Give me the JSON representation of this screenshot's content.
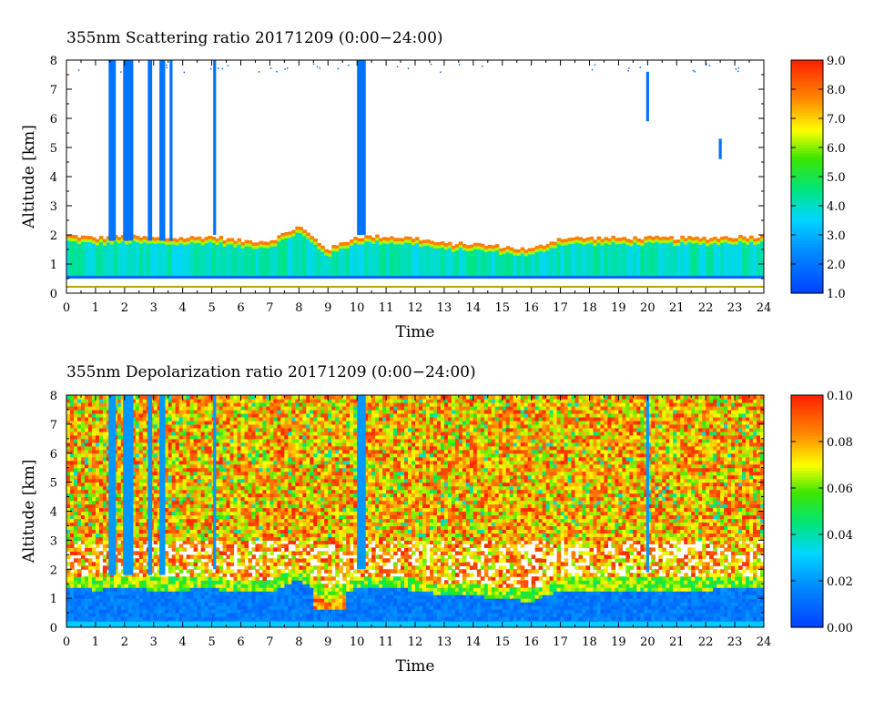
{
  "panels": [
    {
      "title": "355nm Scattering ratio  20171209 (0:00−24:00)"
    },
    {
      "title": "355nm Depolarization ratio  20171209 (0:00−24:00)"
    }
  ],
  "chart_data": [
    {
      "type": "heatmap",
      "title": "355nm Scattering ratio  20171209 (0:00−24:00)",
      "xlabel": "Time",
      "ylabel": "Altitude [km]",
      "xlim": [
        0,
        24
      ],
      "ylim": [
        0,
        8
      ],
      "x_ticks": [
        "0",
        "1",
        "2",
        "3",
        "4",
        "5",
        "6",
        "7",
        "8",
        "9",
        "10",
        "11",
        "12",
        "13",
        "14",
        "15",
        "16",
        "17",
        "18",
        "19",
        "20",
        "21",
        "22",
        "23",
        "24"
      ],
      "y_ticks": [
        "0",
        "1",
        "2",
        "3",
        "4",
        "5",
        "6",
        "7",
        "8"
      ],
      "colorbar": {
        "min": 1.0,
        "max": 9.0,
        "ticks": [
          "1.0",
          "2.0",
          "3.0",
          "4.0",
          "5.0",
          "6.0",
          "7.0",
          "8.0",
          "9.0"
        ]
      },
      "colors": [
        "#0050ff",
        "#00c8ff",
        "#00e060",
        "#ffff00",
        "#ff8000",
        "#ff2000"
      ],
      "boundary_layer_top_km": [
        [
          0,
          2.0
        ],
        [
          1,
          1.9
        ],
        [
          2,
          1.95
        ],
        [
          3,
          1.9
        ],
        [
          4,
          1.9
        ],
        [
          5,
          1.95
        ],
        [
          6,
          1.8
        ],
        [
          7,
          1.8
        ],
        [
          8,
          2.3
        ],
        [
          9,
          1.5
        ],
        [
          10,
          1.95
        ],
        [
          11,
          1.95
        ],
        [
          12,
          1.9
        ],
        [
          13,
          1.7
        ],
        [
          14,
          1.7
        ],
        [
          15,
          1.6
        ],
        [
          16,
          1.5
        ],
        [
          17,
          1.9
        ],
        [
          18,
          1.9
        ],
        [
          19,
          1.9
        ],
        [
          20,
          1.9
        ],
        [
          21,
          1.9
        ],
        [
          22,
          1.9
        ],
        [
          23,
          1.95
        ],
        [
          24,
          1.95
        ]
      ],
      "clouds": [
        {
          "t0": 1.45,
          "t1": 1.7,
          "z0": 1.8,
          "z1": 8
        },
        {
          "t0": 1.95,
          "t1": 2.3,
          "z0": 1.8,
          "z1": 8
        },
        {
          "t0": 2.8,
          "t1": 2.95,
          "z0": 1.8,
          "z1": 8
        },
        {
          "t0": 3.2,
          "t1": 3.4,
          "z0": 1.8,
          "z1": 8
        },
        {
          "t0": 3.55,
          "t1": 3.65,
          "z0": 1.8,
          "z1": 8
        },
        {
          "t0": 5.05,
          "t1": 5.15,
          "z0": 2.0,
          "z1": 8
        },
        {
          "t0": 10.0,
          "t1": 10.3,
          "z0": 2.0,
          "z1": 8
        },
        {
          "t0": 19.95,
          "t1": 20.05,
          "z0": 5.9,
          "z1": 7.6
        },
        {
          "t0": 22.45,
          "t1": 22.55,
          "z0": 4.6,
          "z1": 5.3
        }
      ]
    },
    {
      "type": "heatmap",
      "title": "355nm Depolarization ratio  20171209 (0:00−24:00)",
      "xlabel": "Time",
      "ylabel": "Altitude [km]",
      "xlim": [
        0,
        24
      ],
      "ylim": [
        0,
        8
      ],
      "x_ticks": [
        "0",
        "1",
        "2",
        "3",
        "4",
        "5",
        "6",
        "7",
        "8",
        "9",
        "10",
        "11",
        "12",
        "13",
        "14",
        "15",
        "16",
        "17",
        "18",
        "19",
        "20",
        "21",
        "22",
        "23",
        "24"
      ],
      "y_ticks": [
        "0",
        "1",
        "2",
        "3",
        "4",
        "5",
        "6",
        "7",
        "8"
      ],
      "colorbar": {
        "min": 0.0,
        "max": 0.1,
        "ticks": [
          "0.00",
          "0.02",
          "0.04",
          "0.06",
          "0.08",
          "0.10"
        ]
      },
      "colors": [
        "#0050ff",
        "#00c8ff",
        "#00e060",
        "#ffff00",
        "#ff8000",
        "#ff2000"
      ],
      "boundary_layer_top_km": [
        [
          0,
          2.0
        ],
        [
          1,
          1.9
        ],
        [
          2,
          1.95
        ],
        [
          3,
          1.9
        ],
        [
          4,
          1.9
        ],
        [
          5,
          1.95
        ],
        [
          6,
          1.8
        ],
        [
          7,
          1.8
        ],
        [
          8,
          2.3
        ],
        [
          9,
          1.5
        ],
        [
          10,
          1.95
        ],
        [
          11,
          1.95
        ],
        [
          12,
          1.9
        ],
        [
          13,
          1.7
        ],
        [
          14,
          1.7
        ],
        [
          15,
          1.6
        ],
        [
          16,
          1.5
        ],
        [
          17,
          1.9
        ],
        [
          18,
          1.9
        ],
        [
          19,
          1.9
        ],
        [
          20,
          1.9
        ],
        [
          21,
          1.9
        ],
        [
          22,
          1.9
        ],
        [
          23,
          1.95
        ],
        [
          24,
          1.95
        ]
      ],
      "clouds": [
        {
          "t0": 1.45,
          "t1": 1.7,
          "z0": 1.8,
          "z1": 8
        },
        {
          "t0": 1.95,
          "t1": 2.3,
          "z0": 1.8,
          "z1": 8
        },
        {
          "t0": 2.8,
          "t1": 2.95,
          "z0": 1.8,
          "z1": 8
        },
        {
          "t0": 3.2,
          "t1": 3.4,
          "z0": 1.8,
          "z1": 8
        },
        {
          "t0": 5.05,
          "t1": 5.15,
          "z0": 2.0,
          "z1": 8
        },
        {
          "t0": 10.0,
          "t1": 10.3,
          "z0": 2.0,
          "z1": 8
        },
        {
          "t0": 19.95,
          "t1": 20.05,
          "z0": 1.9,
          "z1": 8
        }
      ]
    }
  ]
}
